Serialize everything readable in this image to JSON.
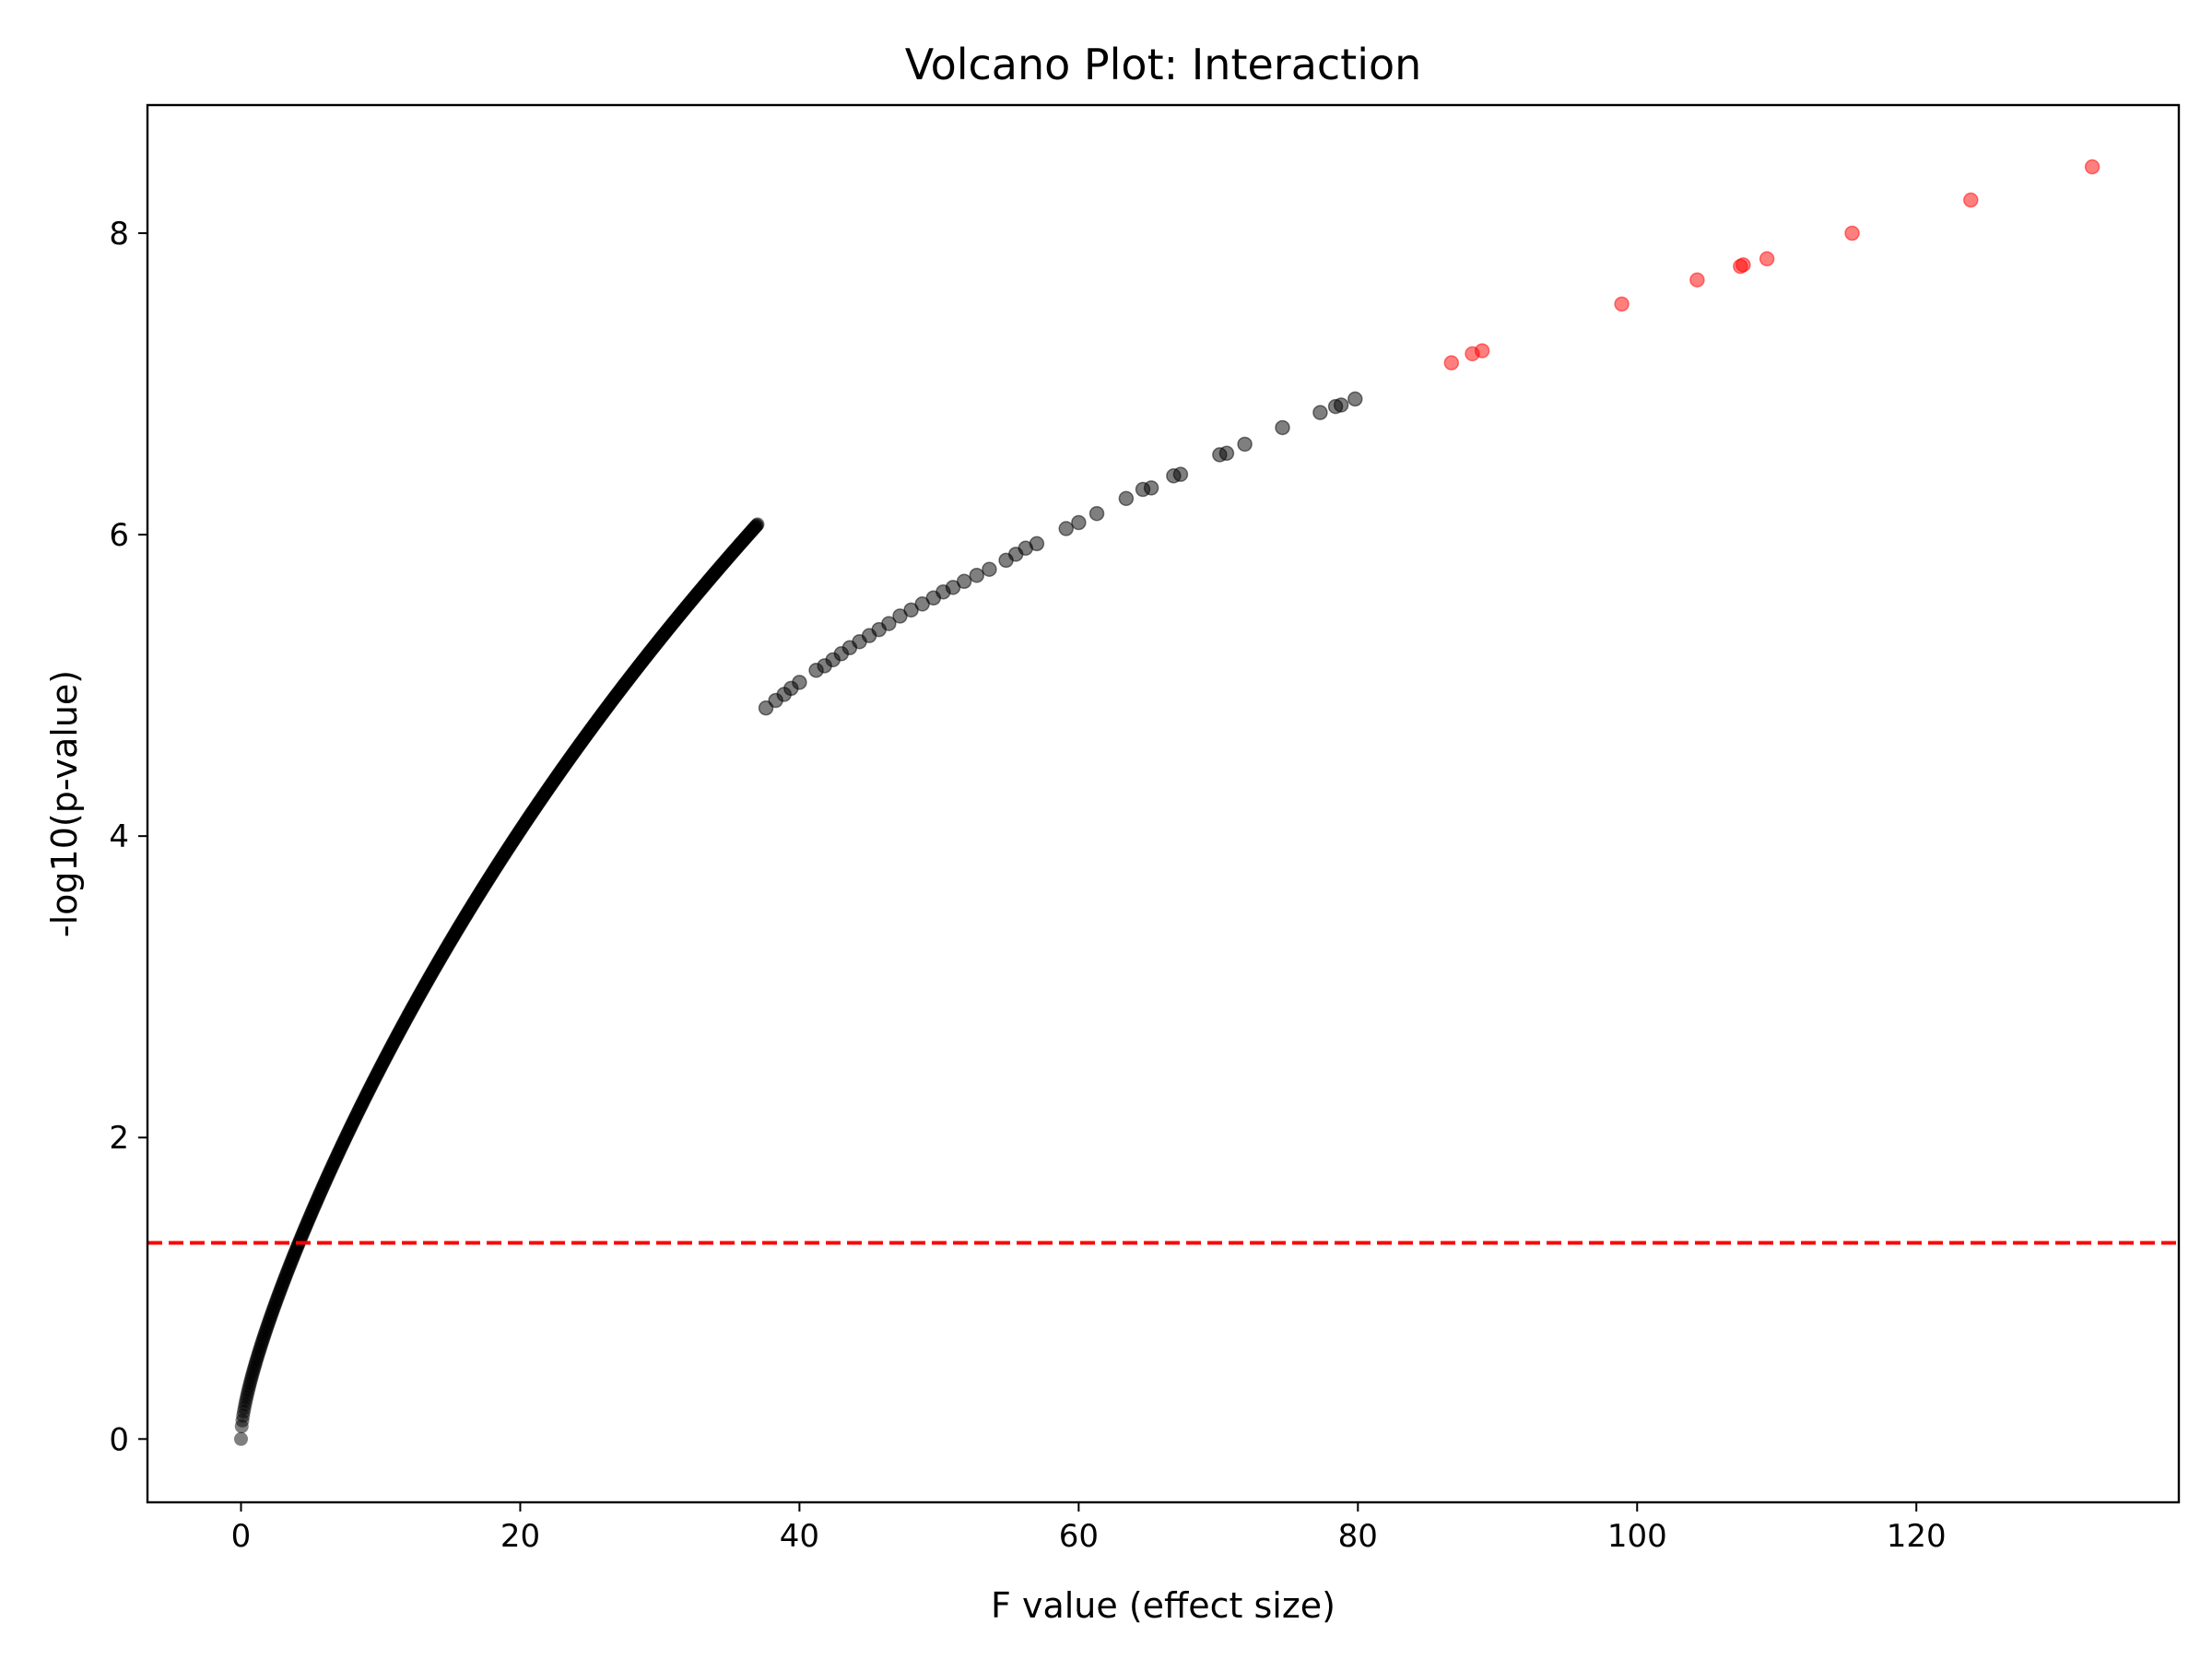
{
  "chart_data": {
    "type": "scatter",
    "title": "Volcano Plot: Interaction",
    "xlabel": "F value (effect size)",
    "ylabel": "-log10(p-value)",
    "xlim": [
      -6.7,
      138.8
    ],
    "ylim": [
      -0.42,
      8.85
    ],
    "x_ticks": [
      0,
      20,
      40,
      60,
      80,
      100,
      120
    ],
    "y_ticks": [
      0,
      2,
      4,
      6,
      8
    ],
    "grid": false,
    "legend": "none",
    "threshold": {
      "orientation": "horizontal",
      "y": 1.301,
      "style": "dashed",
      "color": "#ff0000"
    },
    "colors": {
      "significant": "#ff0000",
      "non_significant": "#000000",
      "marker_alpha": 0.5
    },
    "series": [
      {
        "category": "non_significant",
        "color": "#000000",
        "dense_curve": {
          "x_from": 0,
          "x_to": 37,
          "x_step": 0.05
        },
        "points": [
          [
            37.6,
            4.85
          ],
          [
            38.3,
            4.9
          ],
          [
            38.9,
            4.94
          ],
          [
            39.4,
            4.98
          ],
          [
            40.0,
            5.02
          ],
          [
            41.2,
            5.1
          ],
          [
            41.8,
            5.13
          ],
          [
            42.4,
            5.17
          ],
          [
            43.0,
            5.21
          ],
          [
            43.6,
            5.25
          ],
          [
            44.3,
            5.29
          ],
          [
            45.0,
            5.33
          ],
          [
            45.7,
            5.37
          ],
          [
            46.4,
            5.41
          ],
          [
            47.2,
            5.46
          ],
          [
            48.0,
            5.5
          ],
          [
            48.8,
            5.54
          ],
          [
            49.6,
            5.58
          ],
          [
            50.3,
            5.62
          ],
          [
            51.0,
            5.65
          ],
          [
            51.8,
            5.69
          ],
          [
            52.7,
            5.73
          ],
          [
            53.6,
            5.77
          ],
          [
            54.8,
            5.83
          ],
          [
            55.5,
            5.87
          ],
          [
            56.2,
            5.91
          ],
          [
            57.0,
            5.94
          ],
          [
            59.1,
            6.04
          ],
          [
            60.0,
            6.08
          ],
          [
            61.3,
            6.14
          ],
          [
            63.4,
            6.24
          ],
          [
            64.6,
            6.3
          ],
          [
            65.2,
            6.31
          ],
          [
            66.8,
            6.39
          ],
          [
            67.3,
            6.4
          ],
          [
            70.1,
            6.53
          ],
          [
            70.6,
            6.54
          ],
          [
            71.9,
            6.6
          ],
          [
            74.6,
            6.71
          ],
          [
            77.3,
            6.81
          ],
          [
            78.4,
            6.85
          ],
          [
            78.8,
            6.86
          ],
          [
            79.8,
            6.9
          ]
        ]
      },
      {
        "category": "significant",
        "color": "#ff0000",
        "points": [
          [
            86.7,
            7.14
          ],
          [
            88.2,
            7.2
          ],
          [
            88.9,
            7.22
          ],
          [
            98.9,
            7.53
          ],
          [
            104.3,
            7.69
          ],
          [
            107.4,
            7.78
          ],
          [
            107.6,
            7.79
          ],
          [
            109.3,
            7.83
          ],
          [
            115.4,
            8.0
          ],
          [
            123.9,
            8.22
          ],
          [
            132.6,
            8.44
          ]
        ]
      }
    ]
  }
}
